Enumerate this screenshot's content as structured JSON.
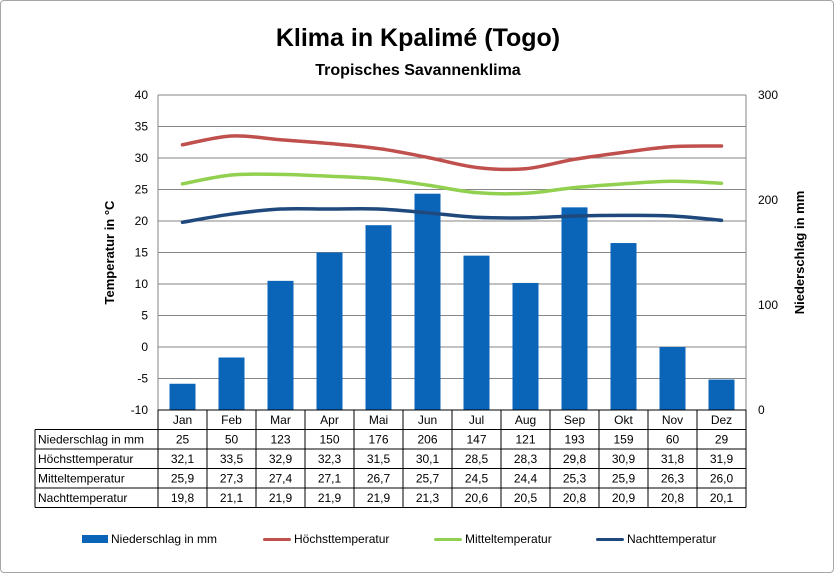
{
  "colors": {
    "precip": "#0a64b8",
    "max": "#c0504d",
    "mean": "#92d050",
    "night": "#1f497d",
    "grid": "#868686"
  },
  "chart_data": {
    "type": "bar",
    "title": "Klima in Kpalimé (Togo)",
    "subtitle": "Tropisches Savannenklima",
    "categories": [
      "Jan",
      "Feb",
      "Mar",
      "Apr",
      "Mai",
      "Jun",
      "Jul",
      "Aug",
      "Sep",
      "Okt",
      "Nov",
      "Dez"
    ],
    "ylabel_left": "Temperatur in °C",
    "ylabel_right": "Niederschlag in mm",
    "ylim_left": [
      -10,
      40
    ],
    "yticks_left": [
      "40",
      "35",
      "30",
      "25",
      "20",
      "15",
      "10",
      "5",
      "0",
      "-5",
      "-10"
    ],
    "ylim_right": [
      0,
      300
    ],
    "yticks_right": [
      "300",
      "200",
      "100",
      "0"
    ],
    "grid": true,
    "legend_position": "bottom",
    "series": [
      {
        "name": "Niederschlag in mm",
        "type": "bar",
        "axis": "right",
        "values": [
          25,
          50,
          123,
          150,
          176,
          206,
          147,
          121,
          193,
          159,
          60,
          29
        ],
        "labels": [
          "25",
          "50",
          "123",
          "150",
          "176",
          "206",
          "147",
          "121",
          "193",
          "159",
          "60",
          "29"
        ]
      },
      {
        "name": "Höchsttemperatur",
        "type": "line",
        "axis": "left",
        "values": [
          32.1,
          33.5,
          32.9,
          32.3,
          31.5,
          30.1,
          28.5,
          28.3,
          29.8,
          30.9,
          31.8,
          31.9
        ],
        "labels": [
          "32,1",
          "33,5",
          "32,9",
          "32,3",
          "31,5",
          "30,1",
          "28,5",
          "28,3",
          "29,8",
          "30,9",
          "31,8",
          "31,9"
        ]
      },
      {
        "name": "Mitteltemperatur",
        "type": "line",
        "axis": "left",
        "values": [
          25.9,
          27.3,
          27.4,
          27.1,
          26.7,
          25.7,
          24.5,
          24.4,
          25.3,
          25.9,
          26.3,
          26.0
        ],
        "labels": [
          "25,9",
          "27,3",
          "27,4",
          "27,1",
          "26,7",
          "25,7",
          "24,5",
          "24,4",
          "25,3",
          "25,9",
          "26,3",
          "26,0"
        ]
      },
      {
        "name": "Nachttemperatur",
        "type": "line",
        "axis": "left",
        "values": [
          19.8,
          21.1,
          21.9,
          21.9,
          21.9,
          21.3,
          20.6,
          20.5,
          20.8,
          20.9,
          20.8,
          20.1
        ],
        "labels": [
          "19,8",
          "21,1",
          "21,9",
          "21,9",
          "21,9",
          "21,3",
          "20,6",
          "20,5",
          "20,8",
          "20,9",
          "20,8",
          "20,1"
        ]
      }
    ]
  }
}
